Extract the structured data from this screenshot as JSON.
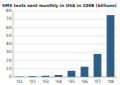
{
  "chart_data": {
    "type": "bar",
    "title": "SMS texts sent monthly in USA in 2008 (billions)",
    "categories": [
      "'01",
      "'02",
      "'03",
      "'04",
      "'05",
      "'06",
      "'07",
      "'08"
    ],
    "values": [
      0.5,
      1.0,
      1.5,
      2.5,
      7.5,
      12.5,
      28.0,
      75.0
    ],
    "color": "#2c5f8a",
    "ylim": [
      0,
      80
    ],
    "yticks": [
      0,
      10,
      20,
      30,
      40,
      50,
      60,
      70,
      80
    ],
    "grid": true
  }
}
